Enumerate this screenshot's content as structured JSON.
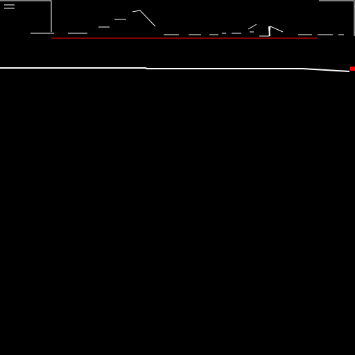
{
  "colors": {
    "background": "#000000",
    "terrain": "#ffffff",
    "laser": "#ff0000",
    "marker": "#ff0000"
  },
  "icons": {
    "menu": "hamburger-menu-icon"
  }
}
